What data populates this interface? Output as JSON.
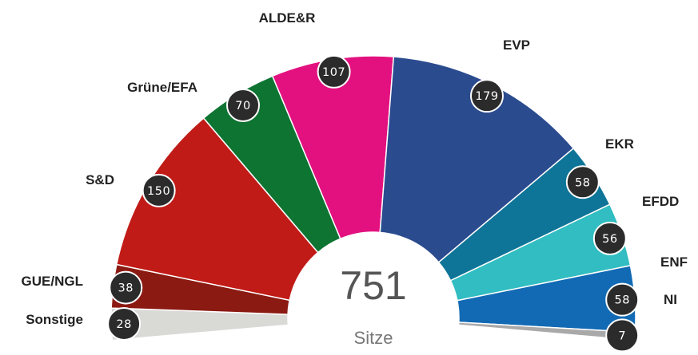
{
  "chart_data": {
    "type": "pie",
    "variant": "parliament-semicircle",
    "total": 751,
    "unit_label": "Sitze",
    "series": [
      {
        "name": "Sonstige",
        "value": 28,
        "color": "#d9d9d6"
      },
      {
        "name": "GUE/NGL",
        "value": 38,
        "color": "#8b1a12"
      },
      {
        "name": "S&D",
        "value": 150,
        "color": "#c11b17"
      },
      {
        "name": "Grüne/EFA",
        "value": 70,
        "color": "#0e7432"
      },
      {
        "name": "ALDE&R",
        "value": 107,
        "color": "#e3117f"
      },
      {
        "name": "EVP",
        "value": 179,
        "color": "#2b4b8f"
      },
      {
        "name": "EKR",
        "value": 58,
        "color": "#0f7598"
      },
      {
        "name": "EFDD",
        "value": 56,
        "color": "#31bdc1"
      },
      {
        "name": "ENF",
        "value": 58,
        "color": "#126ab4"
      },
      {
        "name": "NI",
        "value": 7,
        "color": "#a9a9a9"
      }
    ]
  }
}
